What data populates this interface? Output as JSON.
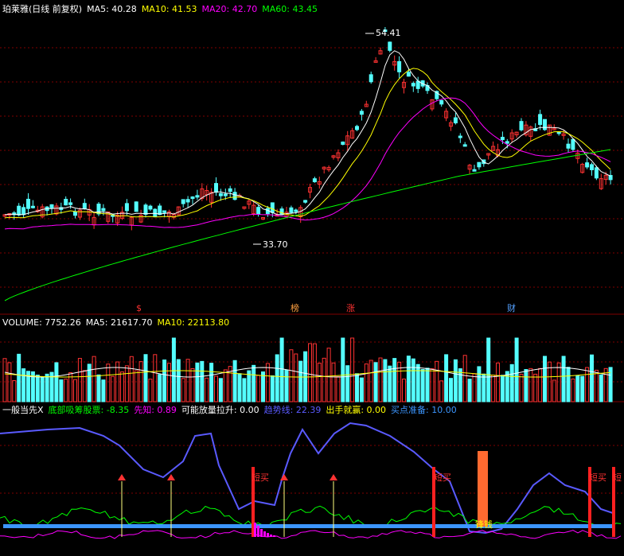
{
  "colors": {
    "bg": "#000000",
    "up": "#ff3232",
    "down": "#54ffff",
    "grid": "#800000",
    "ma5": "#ffffff",
    "ma10": "#ffff00",
    "ma20": "#ff00ff",
    "ma60": "#00ff00",
    "trend": "#5a5aff",
    "bottom_line": "#3c96ff"
  },
  "main_header": {
    "name": "珀莱雅(日线 前复权)",
    "ma5": "MA5: 40.28",
    "ma10": "MA10: 41.53",
    "ma20": "MA20: 42.70",
    "ma60": "MA60: 43.45"
  },
  "price_annotations": {
    "high": "54.41",
    "low": "33.70"
  },
  "event_markers": [
    {
      "label": "$",
      "color": "#ff3232"
    },
    {
      "label": "榜",
      "color": "#ffa040"
    },
    {
      "label": "涨",
      "color": "#ff3232"
    },
    {
      "label": "财",
      "color": "#54a0ff"
    }
  ],
  "volume_header": {
    "volume": "VOLUME: 7752.26",
    "ma5": "MA5: 21617.70",
    "ma10": "MA10: 22113.80"
  },
  "indicator_header": {
    "title": "一般当先X",
    "items": [
      {
        "text": "底部吸筹股票: -8.35",
        "color": "#00ff00"
      },
      {
        "text": "先知: 0.89",
        "color": "#ff00ff"
      },
      {
        "text": "可能放量拉升: 0.00",
        "color": "#ffffff"
      },
      {
        "text": "趋势线: 22.39",
        "color": "#5a5aff"
      },
      {
        "text": "出手就赢: 0.00",
        "color": "#ffff00"
      },
      {
        "text": "买点准备: 10.00",
        "color": "#3c96ff"
      }
    ]
  },
  "indicator_labels": {
    "short_buy": "短买",
    "short_buy_cut": "短",
    "fortune": "锋钱"
  }
}
